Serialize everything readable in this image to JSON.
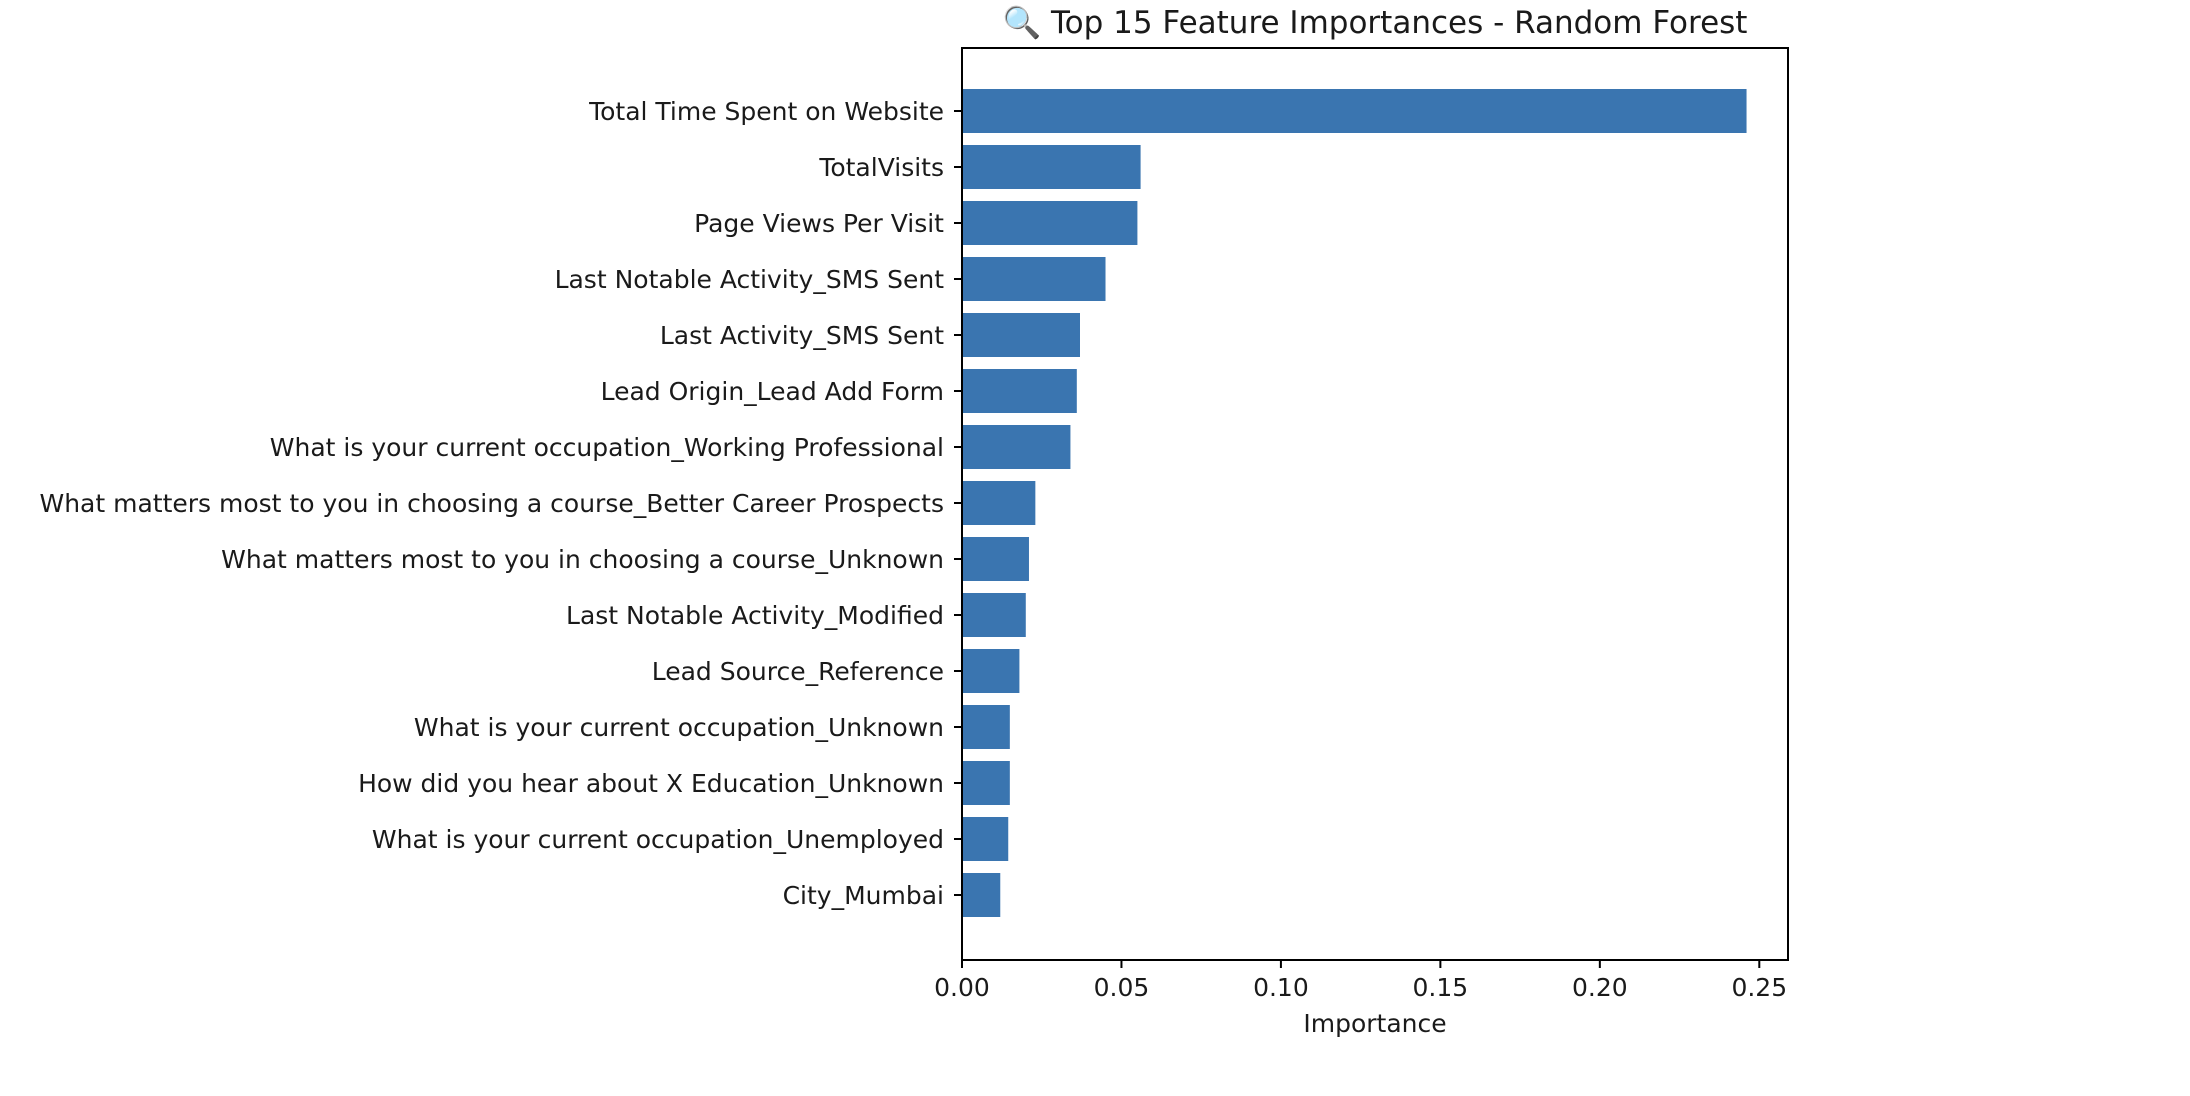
{
  "chart_data": {
    "type": "bar",
    "orientation": "horizontal",
    "title": "🔍 Top 15 Feature Importances - Random Forest",
    "xlabel": "Importance",
    "ylabel": "",
    "xlim": [
      0,
      0.259
    ],
    "x_ticks": [
      "0.00",
      "0.05",
      "0.10",
      "0.15",
      "0.20",
      "0.25"
    ],
    "grid": false,
    "legend": "none",
    "bar_color": "#3a75b0",
    "categories": [
      "Total Time Spent on Website",
      "TotalVisits",
      "Page Views Per Visit",
      "Last Notable Activity_SMS Sent",
      "Last Activity_SMS Sent",
      "Lead Origin_Lead Add Form",
      "What is your current occupation_Working Professional",
      "What matters most to you in choosing a course_Better Career Prospects",
      "What matters most to you in choosing a course_Unknown",
      "Last Notable Activity_Modified",
      "Lead Source_Reference",
      "What is your current occupation_Unknown",
      "How did you hear about X Education_Unknown",
      "What is your current occupation_Unemployed",
      "City_Mumbai"
    ],
    "values": [
      0.246,
      0.056,
      0.055,
      0.045,
      0.037,
      0.036,
      0.034,
      0.023,
      0.021,
      0.02,
      0.018,
      0.015,
      0.015,
      0.0145,
      0.012
    ]
  }
}
